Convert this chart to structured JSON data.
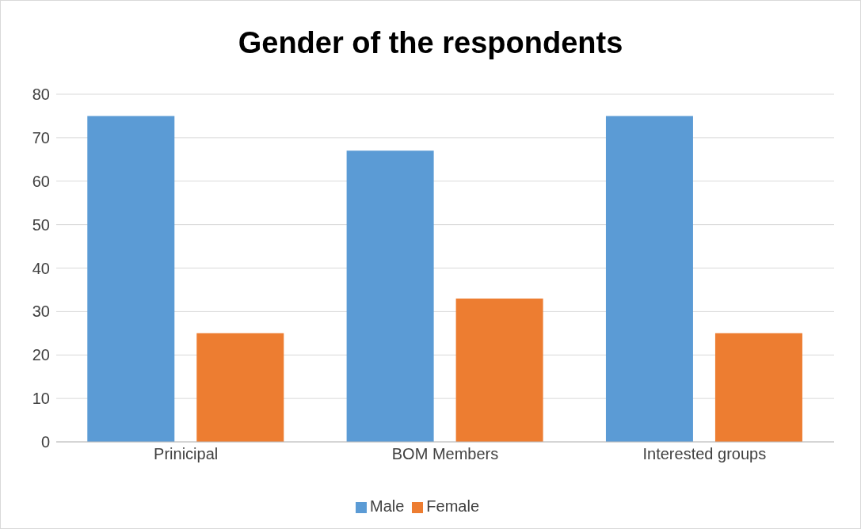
{
  "chart_data": {
    "type": "bar",
    "title": "Gender of the respondents",
    "categories": [
      "Prinicipal",
      "BOM Members",
      "Interested groups"
    ],
    "series": [
      {
        "name": "Male",
        "color": "#5b9bd5",
        "values": [
          75,
          67,
          75
        ]
      },
      {
        "name": "Female",
        "color": "#ed7d31",
        "values": [
          25,
          33,
          25
        ]
      }
    ],
    "ylim": [
      0,
      80
    ],
    "yticks": [
      0,
      10,
      20,
      30,
      40,
      50,
      60,
      70,
      80
    ],
    "grid": "y",
    "legend": "bottom"
  }
}
